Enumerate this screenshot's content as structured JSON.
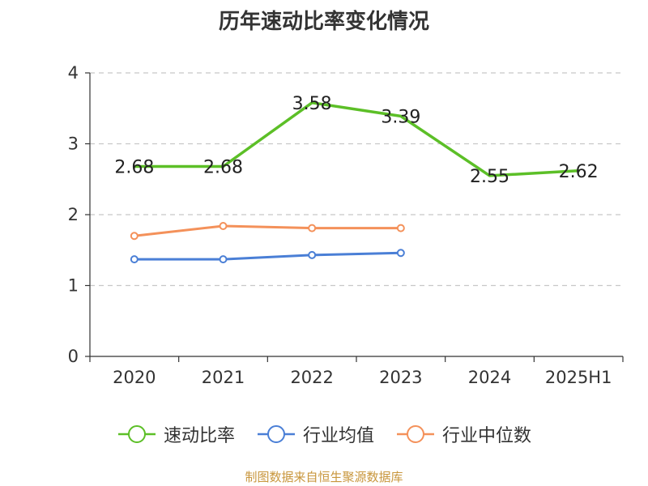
{
  "chart_data": {
    "type": "line",
    "title": "历年速动比率变化情况",
    "categories": [
      "2020",
      "2021",
      "2022",
      "2023",
      "2024",
      "2025H1"
    ],
    "ylim": [
      0,
      4
    ],
    "yticks": [
      "0",
      "1",
      "2",
      "3",
      "4"
    ],
    "grid": true,
    "legend_position": "bottom",
    "series": [
      {
        "name": "速动比率",
        "color": "#5cbf27",
        "values": [
          2.68,
          2.68,
          3.58,
          3.39,
          2.55,
          2.62
        ],
        "labels": [
          "2.68",
          "2.68",
          "3.58",
          "3.39",
          "2.55",
          "2.62"
        ],
        "markers": false
      },
      {
        "name": "行业均值",
        "color": "#4a7fd6",
        "values": [
          1.37,
          1.37,
          1.43,
          1.46,
          null,
          null
        ],
        "markers": true
      },
      {
        "name": "行业中位数",
        "color": "#f4915a",
        "values": [
          1.7,
          1.84,
          1.81,
          1.81,
          null,
          null
        ],
        "markers": true
      }
    ]
  },
  "source_text": "制图数据来自恒生聚源数据库"
}
